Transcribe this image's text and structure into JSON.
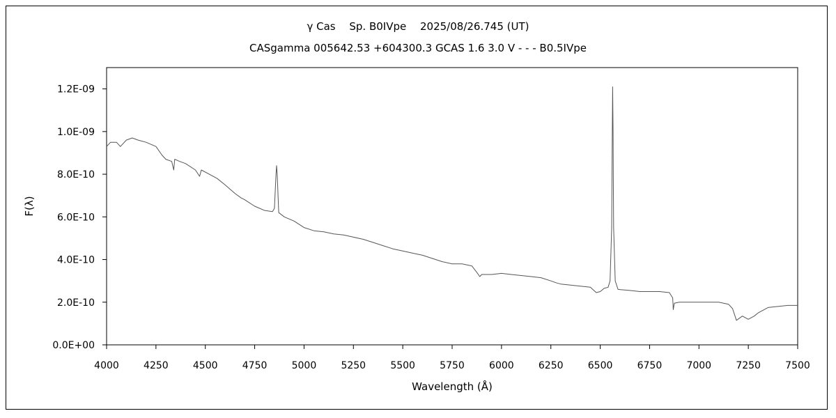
{
  "chart_data": {
    "type": "line",
    "title": "γ Cas　 Sp. B0IVpe　 2025/08/26.745 (UT)",
    "subtitle": "CASgamma 005642.53 +604300.3 GCAS 1.6 3.0 V - - - B0.5IVpe",
    "xlabel": "Wavelength (Å)",
    "ylabel": "F(λ)",
    "xlim": [
      4000,
      7500
    ],
    "ylim": [
      0,
      1.3e-09
    ],
    "x_ticks": [
      4000,
      4250,
      4500,
      4750,
      5000,
      5250,
      5500,
      5750,
      6000,
      6250,
      6500,
      6750,
      7000,
      7250,
      7500
    ],
    "x_tick_labels": [
      "4000",
      "4250",
      "4500",
      "4750",
      "5000",
      "5250",
      "5500",
      "5750",
      "6000",
      "6250",
      "6500",
      "6750",
      "7000",
      "7250",
      "7500"
    ],
    "y_ticks": [
      0,
      2e-10,
      4e-10,
      6e-10,
      8e-10,
      1e-09,
      1.2e-09
    ],
    "y_tick_labels": [
      "0.0E+00",
      "2.0E-10",
      "4.0E-10",
      "6.0E-10",
      "8.0E-10",
      "1.0E-09",
      "1.2E-09"
    ],
    "grid": false,
    "series": [
      {
        "color": "#555555",
        "points": [
          [
            4000,
            9.3e-10
          ],
          [
            4020,
            9.5e-10
          ],
          [
            4050,
            9.5e-10
          ],
          [
            4070,
            9.3e-10
          ],
          [
            4100,
            9.6e-10
          ],
          [
            4130,
            9.7e-10
          ],
          [
            4160,
            9.6e-10
          ],
          [
            4200,
            9.5e-10
          ],
          [
            4250,
            9.3e-10
          ],
          [
            4280,
            8.9e-10
          ],
          [
            4300,
            8.7e-10
          ],
          [
            4330,
            8.6e-10
          ],
          [
            4340,
            8.2e-10
          ],
          [
            4345,
            8.7e-10
          ],
          [
            4370,
            8.6e-10
          ],
          [
            4400,
            8.5e-10
          ],
          [
            4450,
            8.2e-10
          ],
          [
            4471,
            7.9e-10
          ],
          [
            4480,
            8.2e-10
          ],
          [
            4520,
            8e-10
          ],
          [
            4560,
            7.8e-10
          ],
          [
            4600,
            7.5e-10
          ],
          [
            4650,
            7.1e-10
          ],
          [
            4680,
            6.9e-10
          ],
          [
            4700,
            6.8e-10
          ],
          [
            4750,
            6.5e-10
          ],
          [
            4800,
            6.3e-10
          ],
          [
            4840,
            6.25e-10
          ],
          [
            4850,
            6.4e-10
          ],
          [
            4858,
            8e-10
          ],
          [
            4861,
            8.4e-10
          ],
          [
            4864,
            8e-10
          ],
          [
            4872,
            6.2e-10
          ],
          [
            4900,
            6e-10
          ],
          [
            4950,
            5.8e-10
          ],
          [
            5000,
            5.5e-10
          ],
          [
            5050,
            5.35e-10
          ],
          [
            5100,
            5.3e-10
          ],
          [
            5150,
            5.2e-10
          ],
          [
            5200,
            5.15e-10
          ],
          [
            5250,
            5.05e-10
          ],
          [
            5300,
            4.95e-10
          ],
          [
            5350,
            4.8e-10
          ],
          [
            5400,
            4.65e-10
          ],
          [
            5450,
            4.5e-10
          ],
          [
            5500,
            4.4e-10
          ],
          [
            5550,
            4.3e-10
          ],
          [
            5600,
            4.2e-10
          ],
          [
            5650,
            4.05e-10
          ],
          [
            5700,
            3.9e-10
          ],
          [
            5750,
            3.8e-10
          ],
          [
            5800,
            3.8e-10
          ],
          [
            5850,
            3.7e-10
          ],
          [
            5875,
            3.4e-10
          ],
          [
            5890,
            3.2e-10
          ],
          [
            5900,
            3.3e-10
          ],
          [
            5950,
            3.3e-10
          ],
          [
            6000,
            3.35e-10
          ],
          [
            6050,
            3.3e-10
          ],
          [
            6100,
            3.25e-10
          ],
          [
            6150,
            3.2e-10
          ],
          [
            6200,
            3.15e-10
          ],
          [
            6250,
            3e-10
          ],
          [
            6280,
            2.9e-10
          ],
          [
            6300,
            2.85e-10
          ],
          [
            6350,
            2.8e-10
          ],
          [
            6400,
            2.75e-10
          ],
          [
            6450,
            2.7e-10
          ],
          [
            6480,
            2.45e-10
          ],
          [
            6500,
            2.5e-10
          ],
          [
            6520,
            2.65e-10
          ],
          [
            6540,
            2.7e-10
          ],
          [
            6550,
            3e-10
          ],
          [
            6558,
            5.5e-10
          ],
          [
            6561,
            1e-09
          ],
          [
            6563,
            1.21e-09
          ],
          [
            6565,
            1e-09
          ],
          [
            6568,
            5.5e-10
          ],
          [
            6576,
            3e-10
          ],
          [
            6590,
            2.6e-10
          ],
          [
            6650,
            2.55e-10
          ],
          [
            6700,
            2.5e-10
          ],
          [
            6750,
            2.5e-10
          ],
          [
            6800,
            2.5e-10
          ],
          [
            6850,
            2.45e-10
          ],
          [
            6867,
            2.2e-10
          ],
          [
            6870,
            1.65e-10
          ],
          [
            6875,
            1.95e-10
          ],
          [
            6900,
            2e-10
          ],
          [
            6950,
            2e-10
          ],
          [
            7000,
            2e-10
          ],
          [
            7050,
            2e-10
          ],
          [
            7100,
            2e-10
          ],
          [
            7150,
            1.9e-10
          ],
          [
            7170,
            1.7e-10
          ],
          [
            7190,
            1.15e-10
          ],
          [
            7220,
            1.35e-10
          ],
          [
            7250,
            1.2e-10
          ],
          [
            7280,
            1.35e-10
          ],
          [
            7300,
            1.5e-10
          ],
          [
            7350,
            1.75e-10
          ],
          [
            7400,
            1.8e-10
          ],
          [
            7450,
            1.85e-10
          ],
          [
            7500,
            1.85e-10
          ]
        ]
      }
    ]
  }
}
